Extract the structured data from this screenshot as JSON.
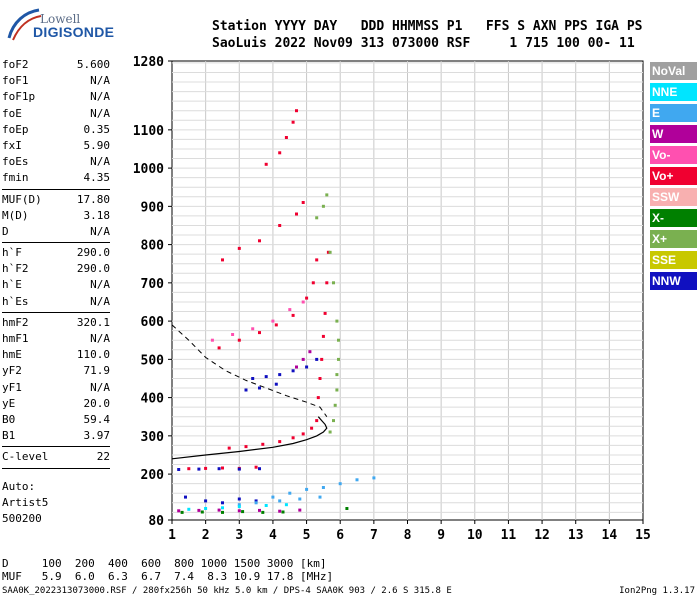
{
  "logo": {
    "line1": "Lowell",
    "line2": "DIGISONDE"
  },
  "header": {
    "labels": "Station YYYY DAY   DDD HHMMSS P1   FFS S AXN PPS IGA PS",
    "values": "SaoLuis 2022 Nov09 313 073000 RSF     1 715 100 00- 11"
  },
  "params_group1": [
    {
      "name": "foF2",
      "value": "5.600"
    },
    {
      "name": "foF1",
      "value": "N/A"
    },
    {
      "name": "foF1p",
      "value": "N/A"
    },
    {
      "name": "foE",
      "value": "N/A"
    },
    {
      "name": "foEp",
      "value": "0.35"
    },
    {
      "name": "fxI",
      "value": "5.90"
    },
    {
      "name": "foEs",
      "value": "N/A"
    },
    {
      "name": "fmin",
      "value": "4.35"
    }
  ],
  "params_group2": [
    {
      "name": "MUF(D)",
      "value": "17.80"
    },
    {
      "name": "M(D)",
      "value": "3.18"
    },
    {
      "name": "D",
      "value": "N/A"
    }
  ],
  "params_group3": [
    {
      "name": "h`F",
      "value": "290.0"
    },
    {
      "name": "h`F2",
      "value": "290.0"
    },
    {
      "name": "h`E",
      "value": "N/A"
    },
    {
      "name": "h`Es",
      "value": "N/A"
    }
  ],
  "params_group4": [
    {
      "name": "hmF2",
      "value": "320.1"
    },
    {
      "name": "hmF1",
      "value": "N/A"
    },
    {
      "name": "hmE",
      "value": "110.0"
    },
    {
      "name": "yF2",
      "value": "71.9"
    },
    {
      "name": "yF1",
      "value": "N/A"
    },
    {
      "name": "yE",
      "value": "20.0"
    },
    {
      "name": "B0",
      "value": "59.4"
    },
    {
      "name": "B1",
      "value": "3.97"
    }
  ],
  "params_group5": [
    {
      "name": "C-level",
      "value": "22"
    }
  ],
  "auto_text": "Auto:\nArtist5\n500200",
  "legend": [
    {
      "label": "NoVal",
      "color": "#a0a0a0"
    },
    {
      "label": "NNE",
      "color": "#00e5ff"
    },
    {
      "label": "E",
      "color": "#40a8f0"
    },
    {
      "label": "W",
      "color": "#b0009a"
    },
    {
      "label": "Vo-",
      "color": "#ff50b0"
    },
    {
      "label": "Vo+",
      "color": "#f00030"
    },
    {
      "label": "SSW",
      "color": "#f8b0b0"
    },
    {
      "label": "X-",
      "color": "#008000"
    },
    {
      "label": "X+",
      "color": "#7ab050"
    },
    {
      "label": "SSE",
      "color": "#c8c800"
    },
    {
      "label": "NNW",
      "color": "#1010c0"
    }
  ],
  "muf_table": {
    "line1": "D     100  200  400  600  800 1000 1500 3000 [km]",
    "line2": "MUF   5.9  6.0  6.3  6.7  7.4  8.3 10.9 17.8 [MHz]"
  },
  "footer": "SAA0K_2022313073000.RSF / 280fx256h 50 kHz 5.0 km / DPS-4 SAA0K 903 / 2.6 S 315.8 E",
  "version": "Ion2Png 1.3.17",
  "chart_data": {
    "type": "scatter",
    "xlim": [
      1,
      15
    ],
    "ylim": [
      80,
      1280
    ],
    "x_ticks": [
      1,
      2,
      3,
      4,
      5,
      6,
      7,
      8,
      9,
      10,
      11,
      12,
      13,
      14,
      15
    ],
    "y_ticks": [
      80,
      200,
      300,
      400,
      500,
      600,
      700,
      800,
      900,
      1000,
      1100,
      1280
    ],
    "grid": true,
    "profile_solid": [
      [
        1,
        240
      ],
      [
        2,
        250
      ],
      [
        3,
        259
      ],
      [
        4,
        270
      ],
      [
        4.6,
        280
      ],
      [
        5,
        290
      ],
      [
        5.3,
        300
      ],
      [
        5.5,
        310
      ],
      [
        5.6,
        320
      ],
      [
        5.55,
        330
      ],
      [
        5.45,
        340
      ],
      [
        5.35,
        350
      ]
    ],
    "profile_dashed": [
      [
        1,
        590
      ],
      [
        1.5,
        550
      ],
      [
        2,
        505
      ],
      [
        2.6,
        470
      ],
      [
        3.2,
        445
      ],
      [
        3.8,
        425
      ],
      [
        4.4,
        405
      ],
      [
        5,
        388
      ],
      [
        5.4,
        375
      ],
      [
        5.6,
        350
      ]
    ],
    "traces": [
      {
        "name": "Vo+",
        "color": "#f00030",
        "points": [
          [
            1.5,
            214
          ],
          [
            2,
            215
          ],
          [
            2.5,
            216
          ],
          [
            3,
            215
          ],
          [
            3.5,
            218
          ],
          [
            2.7,
            268
          ],
          [
            3.2,
            272
          ],
          [
            3.7,
            278
          ],
          [
            4.2,
            285
          ],
          [
            4.6,
            295
          ],
          [
            4.9,
            305
          ],
          [
            5.15,
            320
          ],
          [
            5.3,
            340
          ],
          [
            5.35,
            400
          ],
          [
            5.4,
            450
          ],
          [
            5.45,
            500
          ],
          [
            5.5,
            560
          ],
          [
            5.55,
            620
          ],
          [
            5.6,
            700
          ],
          [
            5.65,
            780
          ],
          [
            2.4,
            530
          ],
          [
            3,
            550
          ],
          [
            3.6,
            570
          ],
          [
            4.1,
            590
          ],
          [
            4.6,
            615
          ],
          [
            5,
            660
          ],
          [
            5.2,
            700
          ],
          [
            5.3,
            760
          ],
          [
            2.5,
            760
          ],
          [
            3,
            790
          ],
          [
            3.6,
            810
          ],
          [
            4.2,
            850
          ],
          [
            4.7,
            880
          ],
          [
            4.9,
            910
          ],
          [
            3.8,
            1010
          ],
          [
            4.2,
            1040
          ],
          [
            4.4,
            1080
          ],
          [
            4.6,
            1120
          ],
          [
            4.7,
            1150
          ]
        ]
      },
      {
        "name": "NNW",
        "color": "#1010c0",
        "points": [
          [
            1.2,
            212
          ],
          [
            1.8,
            213
          ],
          [
            2.4,
            214
          ],
          [
            3,
            213
          ],
          [
            3.6,
            214
          ],
          [
            3.4,
            450
          ],
          [
            3.8,
            455
          ],
          [
            4.2,
            460
          ],
          [
            4.6,
            470
          ],
          [
            5,
            480
          ],
          [
            5.3,
            500
          ],
          [
            3.2,
            420
          ],
          [
            3.6,
            425
          ],
          [
            4.1,
            435
          ],
          [
            1.4,
            140
          ],
          [
            2,
            130
          ],
          [
            2.5,
            125
          ],
          [
            3,
            135
          ],
          [
            3.5,
            130
          ]
        ]
      },
      {
        "name": "X+",
        "color": "#7ab050",
        "points": [
          [
            5.7,
            310
          ],
          [
            5.8,
            340
          ],
          [
            5.85,
            380
          ],
          [
            5.9,
            420
          ],
          [
            5.9,
            460
          ],
          [
            5.95,
            500
          ],
          [
            5.95,
            550
          ],
          [
            5.9,
            600
          ],
          [
            5.8,
            700
          ],
          [
            5.7,
            780
          ],
          [
            5.3,
            870
          ],
          [
            5.5,
            900
          ],
          [
            5.6,
            930
          ]
        ]
      },
      {
        "name": "E",
        "color": "#40a8f0",
        "points": [
          [
            4,
            140
          ],
          [
            4.5,
            150
          ],
          [
            5,
            160
          ],
          [
            5.5,
            165
          ],
          [
            6,
            175
          ],
          [
            6.5,
            185
          ],
          [
            7,
            190
          ],
          [
            4.2,
            130
          ],
          [
            4.8,
            135
          ],
          [
            5.4,
            140
          ],
          [
            3.5,
            125
          ],
          [
            3,
            120
          ]
        ]
      },
      {
        "name": "NNE",
        "color": "#00e5ff",
        "points": [
          [
            2,
            110
          ],
          [
            2.5,
            112
          ],
          [
            3,
            115
          ],
          [
            1.5,
            108
          ],
          [
            3.8,
            118
          ],
          [
            4.4,
            120
          ]
        ]
      },
      {
        "name": "W",
        "color": "#b0009a",
        "points": [
          [
            1.2,
            104
          ],
          [
            1.8,
            105
          ],
          [
            2.4,
            106
          ],
          [
            3,
            104
          ],
          [
            3.6,
            105
          ],
          [
            4.2,
            103
          ],
          [
            4.8,
            106
          ],
          [
            4.9,
            500
          ],
          [
            5.1,
            520
          ],
          [
            4.7,
            480
          ]
        ]
      },
      {
        "name": "X-",
        "color": "#008000",
        "points": [
          [
            1.3,
            100
          ],
          [
            1.9,
            101
          ],
          [
            2.5,
            100
          ],
          [
            3.1,
            102
          ],
          [
            3.7,
            100
          ],
          [
            4.3,
            101
          ],
          [
            6.2,
            110
          ]
        ]
      },
      {
        "name": "Vo-",
        "color": "#ff50b0",
        "points": [
          [
            2.2,
            550
          ],
          [
            2.8,
            565
          ],
          [
            3.4,
            580
          ],
          [
            4,
            600
          ],
          [
            4.5,
            630
          ],
          [
            4.9,
            650
          ]
        ]
      }
    ]
  }
}
